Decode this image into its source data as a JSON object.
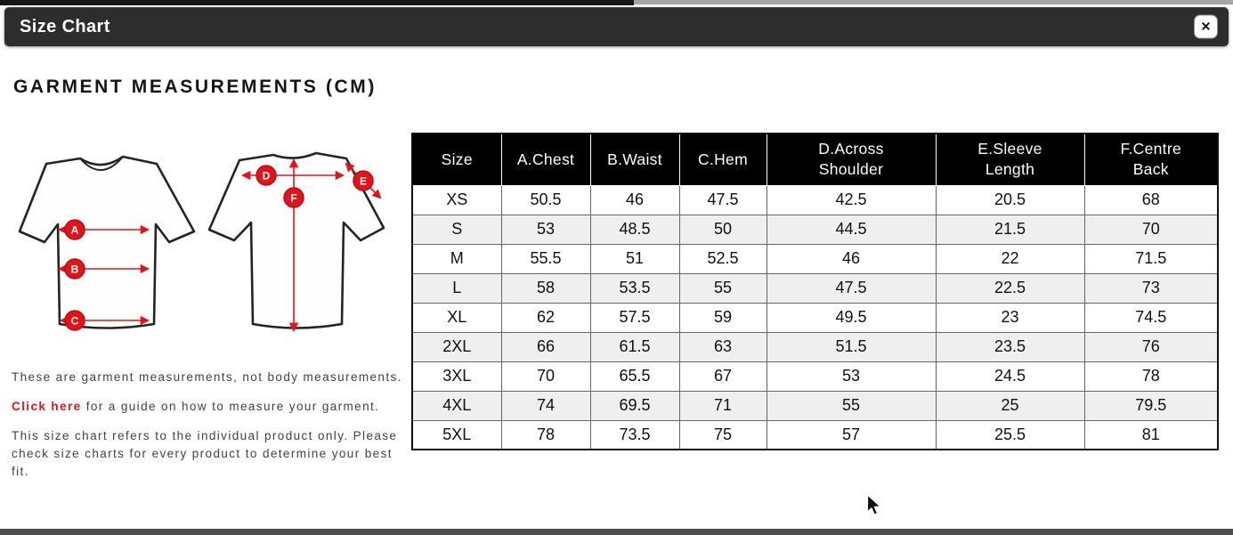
{
  "modal": {
    "title": "Size Chart",
    "close_icon": "✕"
  },
  "content": {
    "heading": "GARMENT MEASUREMENTS (CM)"
  },
  "colors": {
    "accent_red": "#e0151c",
    "modal_header_bg": "#2d2d2d",
    "table_header_bg": "#000000",
    "row_alt_bg": "#efefef",
    "top_strip_left": "#161616",
    "top_strip_right": "#a6a6a6",
    "bottom_strip": "#4f4f4f"
  },
  "diagram": {
    "front_labels": [
      "A",
      "B",
      "C"
    ],
    "back_labels": [
      "D",
      "E",
      "F"
    ]
  },
  "notes": {
    "note1": "These are garment measurements, not body measurements.",
    "link_text": "Click here",
    "note2_rest": " for a guide on how to measure your garment.",
    "note3": "This size chart refers to the individual product only. Please check size charts for every product to determine your best fit."
  },
  "table": {
    "columns": [
      "Size",
      "A.Chest",
      "B.Waist",
      "C.Hem",
      "D.Across\nShoulder",
      "E.Sleeve\nLength",
      "F.Centre\nBack"
    ],
    "rows": [
      [
        "XS",
        "50.5",
        "46",
        "47.5",
        "42.5",
        "20.5",
        "68"
      ],
      [
        "S",
        "53",
        "48.5",
        "50",
        "44.5",
        "21.5",
        "70"
      ],
      [
        "M",
        "55.5",
        "51",
        "52.5",
        "46",
        "22",
        "71.5"
      ],
      [
        "L",
        "58",
        "53.5",
        "55",
        "47.5",
        "22.5",
        "73"
      ],
      [
        "XL",
        "62",
        "57.5",
        "59",
        "49.5",
        "23",
        "74.5"
      ],
      [
        "2XL",
        "66",
        "61.5",
        "63",
        "51.5",
        "23.5",
        "76"
      ],
      [
        "3XL",
        "70",
        "65.5",
        "67",
        "53",
        "24.5",
        "78"
      ],
      [
        "4XL",
        "74",
        "69.5",
        "71",
        "55",
        "25",
        "79.5"
      ],
      [
        "5XL",
        "78",
        "73.5",
        "75",
        "57",
        "25.5",
        "81"
      ]
    ]
  }
}
